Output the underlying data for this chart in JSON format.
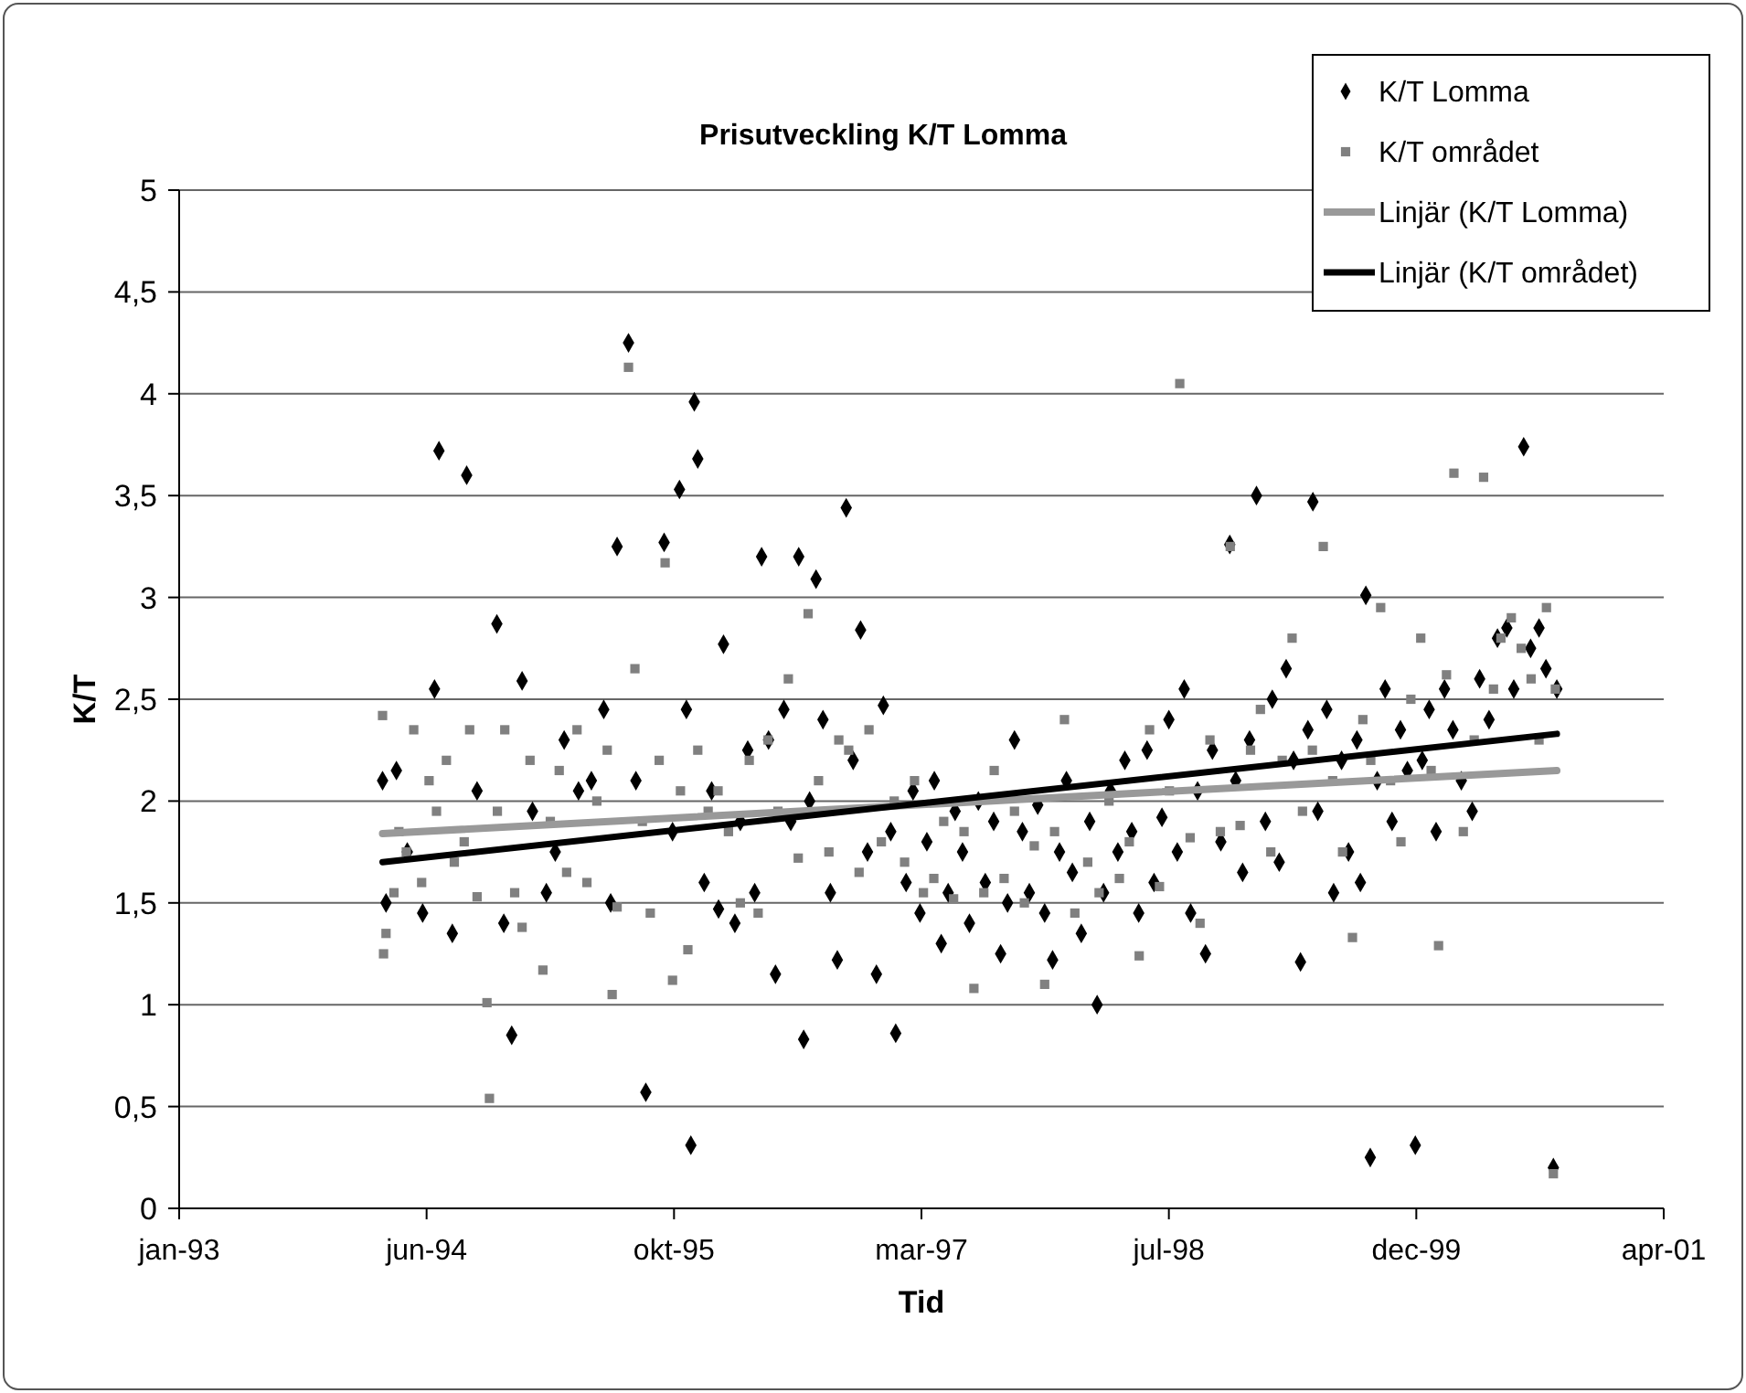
{
  "chart_data": {
    "type": "scatter",
    "title": "Prisutveckling K/T Lomma",
    "xlabel": "Tid",
    "ylabel": "K/T",
    "xlim": [
      "1993-01-31",
      "2001-04-19"
    ],
    "xticks": [
      {
        "value": "1993-01-31",
        "label": "jan-93"
      },
      {
        "value": "1994-06-15",
        "label": "jun-94"
      },
      {
        "value": "1995-10-28",
        "label": "okt-95"
      },
      {
        "value": "1997-03-11",
        "label": "mar-97"
      },
      {
        "value": "1998-07-24",
        "label": "jul-98"
      },
      {
        "value": "1999-12-06",
        "label": "dec-99"
      },
      {
        "value": "2001-04-19",
        "label": "apr-01"
      }
    ],
    "ylim": [
      0,
      5
    ],
    "yticks": [
      0,
      {
        "value": 0.5,
        "label": "0,5"
      },
      1,
      {
        "value": 1.5,
        "label": "1,5"
      },
      2,
      {
        "value": 2.5,
        "label": "2,5"
      },
      3,
      {
        "value": 3.5,
        "label": "3,5"
      },
      4,
      {
        "value": 4.5,
        "label": "4,5"
      },
      5
    ],
    "grid": "y",
    "legend": "top right",
    "series": [
      {
        "name": "K/T Lomma",
        "marker": "diamond",
        "color": "#000000",
        "x": [
          "1994-03-18",
          "1994-03-25",
          "1994-04-15",
          "1994-05-07",
          "1994-06-07",
          "1994-07-01",
          "1994-07-10",
          "1994-08-06",
          "1994-09-04",
          "1994-09-25",
          "1994-11-04",
          "1994-11-18",
          "1994-12-04",
          "1994-12-25",
          "1995-01-15",
          "1995-02-12",
          "1995-03-02",
          "1995-03-20",
          "1995-04-18",
          "1995-05-14",
          "1995-06-08",
          "1995-06-22",
          "1995-07-05",
          "1995-07-28",
          "1995-08-12",
          "1995-09-01",
          "1995-10-08",
          "1995-10-25",
          "1995-11-08",
          "1995-11-22",
          "1995-12-01",
          "1995-12-08",
          "1995-12-15",
          "1995-12-28",
          "1996-01-12",
          "1996-01-26",
          "1996-02-05",
          "1996-02-28",
          "1996-03-10",
          "1996-03-25",
          "1996-04-08",
          "1996-04-22",
          "1996-05-06",
          "1996-05-20",
          "1996-06-06",
          "1996-06-20",
          "1996-07-06",
          "1996-07-16",
          "1996-07-28",
          "1996-08-10",
          "1996-08-24",
          "1996-09-08",
          "1996-09-22",
          "1996-10-10",
          "1996-10-24",
          "1996-11-08",
          "1996-11-22",
          "1996-12-10",
          "1996-12-24",
          "1997-01-08",
          "1997-01-18",
          "1997-02-08",
          "1997-02-22",
          "1997-03-08",
          "1997-03-22",
          "1997-04-06",
          "1997-04-20",
          "1997-05-04",
          "1997-05-18",
          "1997-06-02",
          "1997-06-16",
          "1997-07-04",
          "1997-07-18",
          "1997-08-04",
          "1997-08-18",
          "1997-09-01",
          "1997-09-15",
          "1997-10-01",
          "1997-10-15",
          "1997-11-01",
          "1997-11-15",
          "1997-12-01",
          "1997-12-15",
          "1997-12-29",
          "1998-01-10",
          "1998-01-28",
          "1998-02-14",
          "1998-03-01",
          "1998-03-14",
          "1998-03-28",
          "1998-04-12",
          "1998-04-26",
          "1998-05-10",
          "1998-05-24",
          "1998-06-10",
          "1998-06-24",
          "1998-07-10",
          "1998-07-24",
          "1998-08-10",
          "1998-08-24",
          "1998-09-06",
          "1998-09-20",
          "1998-10-06",
          "1998-10-20",
          "1998-11-06",
          "1998-11-24",
          "1998-12-06",
          "1998-12-20",
          "1999-01-03",
          "1999-01-17",
          "1999-02-04",
          "1999-02-18",
          "1999-03-04",
          "1999-03-18",
          "1999-04-02",
          "1999-04-16",
          "1999-05-01",
          "1999-05-11",
          "1999-05-21",
          "1999-06-08",
          "1999-06-22",
          "1999-07-08",
          "1999-07-22",
          "1999-08-08",
          "1999-08-15",
          "1999-08-26",
          "1999-09-04",
          "1999-09-18",
          "1999-10-04",
          "1999-10-18",
          "1999-11-04",
          "1999-11-18",
          "1999-12-04",
          "1999-12-18",
          "2000-01-01",
          "2000-01-15",
          "2000-02-01",
          "2000-02-18",
          "2000-03-06",
          "2000-03-28",
          "2000-04-12",
          "2000-05-01",
          "2000-05-18",
          "2000-06-06",
          "2000-06-20",
          "2000-07-10",
          "2000-07-24",
          "2000-08-10",
          "2000-08-24",
          "2000-09-08",
          "2000-09-15"
        ],
        "values": [
          2.1,
          1.5,
          2.15,
          1.75,
          1.45,
          2.55,
          3.72,
          1.35,
          3.6,
          2.05,
          2.87,
          1.4,
          0.85,
          2.59,
          1.95,
          1.55,
          1.75,
          2.3,
          2.05,
          2.1,
          2.45,
          1.5,
          3.25,
          4.25,
          2.1,
          0.57,
          3.27,
          1.85,
          3.53,
          2.45,
          0.31,
          3.96,
          3.68,
          1.6,
          2.05,
          1.47,
          2.77,
          1.4,
          1.9,
          2.25,
          1.55,
          3.2,
          2.3,
          1.15,
          2.45,
          1.9,
          3.2,
          0.83,
          2.0,
          3.09,
          2.4,
          1.55,
          1.22,
          3.44,
          2.2,
          2.84,
          1.75,
          1.15,
          2.47,
          1.85,
          0.86,
          1.6,
          2.05,
          1.45,
          1.8,
          2.1,
          1.3,
          1.55,
          1.95,
          1.75,
          1.4,
          2.0,
          1.6,
          1.9,
          1.25,
          1.5,
          2.3,
          1.85,
          1.55,
          1.98,
          1.45,
          1.22,
          1.75,
          2.1,
          1.65,
          1.35,
          1.9,
          1.0,
          1.55,
          2.05,
          1.75,
          2.2,
          1.85,
          1.45,
          2.25,
          1.6,
          1.92,
          2.4,
          1.75,
          2.55,
          1.45,
          2.05,
          1.25,
          2.25,
          1.8,
          3.26,
          2.1,
          1.65,
          2.3,
          3.5,
          1.9,
          2.5,
          1.7,
          2.65,
          2.2,
          1.21,
          2.35,
          3.47,
          1.95,
          2.45,
          1.55,
          2.2,
          1.75,
          2.3,
          1.6,
          3.01,
          0.25,
          2.1,
          2.55,
          1.9,
          2.35,
          2.15,
          0.31,
          2.2,
          2.45,
          1.85,
          2.55,
          2.35,
          2.1,
          1.95,
          2.6,
          2.4,
          2.8,
          2.85,
          2.55,
          3.74,
          2.75,
          2.85,
          2.65,
          0.2,
          2.55
        ]
      },
      {
        "name": "K/T området",
        "marker": "square",
        "color": "#808080",
        "x": [
          "1994-03-18",
          "1994-03-20",
          "1994-03-25",
          "1994-04-10",
          "1994-04-20",
          "1994-05-05",
          "1994-05-20",
          "1994-06-05",
          "1994-06-20",
          "1994-07-05",
          "1994-07-25",
          "1994-08-10",
          "1994-08-30",
          "1994-09-10",
          "1994-09-25",
          "1994-10-15",
          "1994-10-20",
          "1994-11-05",
          "1994-11-20",
          "1994-12-10",
          "1994-12-25",
          "1995-01-10",
          "1995-02-05",
          "1995-02-20",
          "1995-03-10",
          "1995-03-25",
          "1995-04-15",
          "1995-05-05",
          "1995-05-25",
          "1995-06-15",
          "1995-06-25",
          "1995-07-05",
          "1995-07-28",
          "1995-08-10",
          "1995-08-25",
          "1995-09-10",
          "1995-09-28",
          "1995-10-10",
          "1995-10-25",
          "1995-11-10",
          "1995-11-25",
          "1995-12-15",
          "1996-01-05",
          "1996-01-25",
          "1996-02-15",
          "1996-03-10",
          "1996-03-28",
          "1996-04-15",
          "1996-05-05",
          "1996-05-25",
          "1996-06-15",
          "1996-07-05",
          "1996-07-25",
          "1996-08-15",
          "1996-09-05",
          "1996-09-25",
          "1996-10-15",
          "1996-11-05",
          "1996-11-25",
          "1996-12-20",
          "1997-01-15",
          "1997-02-05",
          "1997-02-25",
          "1997-03-15",
          "1997-04-05",
          "1997-04-25",
          "1997-05-15",
          "1997-06-05",
          "1997-06-25",
          "1997-07-15",
          "1997-08-05",
          "1997-08-25",
          "1997-09-15",
          "1997-10-05",
          "1997-10-25",
          "1997-11-15",
          "1997-12-05",
          "1997-12-25",
          "1998-01-15",
          "1998-02-10",
          "1998-03-05",
          "1998-03-25",
          "1998-04-15",
          "1998-05-05",
          "1998-05-25",
          "1998-06-15",
          "1998-07-05",
          "1998-07-25",
          "1998-08-15",
          "1998-09-05",
          "1998-09-25",
          "1998-10-15",
          "1998-11-05",
          "1998-11-25",
          "1998-12-15",
          "1999-01-05",
          "1999-01-25",
          "1999-02-15",
          "1999-03-10",
          "1999-03-30",
          "1999-04-20",
          "1999-05-10",
          "1999-06-01",
          "1999-06-20",
          "1999-07-10",
          "1999-07-30",
          "1999-08-20",
          "1999-09-05",
          "1999-09-25",
          "1999-10-15",
          "1999-11-05",
          "1999-11-25",
          "1999-12-15",
          "2000-01-05",
          "2000-01-20",
          "2000-02-05",
          "2000-02-20",
          "2000-03-10",
          "2000-04-01",
          "2000-04-20",
          "2000-05-10",
          "2000-05-25",
          "2000-06-15",
          "2000-07-05",
          "2000-07-25",
          "2000-08-10",
          "2000-08-25",
          "2000-09-08",
          "2000-09-12"
        ],
        "values": [
          2.42,
          1.25,
          1.35,
          1.55,
          1.85,
          1.75,
          2.35,
          1.6,
          2.1,
          1.95,
          2.2,
          1.7,
          1.8,
          2.35,
          1.53,
          1.01,
          0.54,
          1.95,
          2.35,
          1.55,
          1.38,
          2.2,
          1.17,
          1.9,
          2.15,
          1.65,
          2.35,
          1.6,
          2.0,
          2.25,
          1.05,
          1.48,
          4.13,
          2.65,
          1.9,
          1.45,
          2.2,
          3.17,
          1.12,
          2.05,
          1.27,
          2.25,
          1.95,
          2.05,
          1.85,
          1.5,
          2.2,
          1.45,
          2.3,
          1.95,
          2.6,
          1.72,
          2.92,
          2.1,
          1.75,
          2.3,
          2.25,
          1.65,
          2.35,
          1.8,
          2.0,
          1.7,
          2.1,
          1.55,
          1.62,
          1.9,
          1.52,
          1.85,
          1.08,
          1.55,
          2.15,
          1.62,
          1.95,
          1.5,
          1.78,
          1.1,
          1.85,
          2.4,
          1.45,
          1.7,
          1.55,
          2.0,
          1.62,
          1.8,
          1.24,
          2.35,
          1.58,
          2.05,
          4.05,
          1.82,
          1.4,
          2.3,
          1.85,
          3.25,
          1.88,
          2.25,
          2.45,
          1.75,
          2.2,
          2.8,
          1.95,
          2.25,
          3.25,
          2.1,
          1.75,
          1.33,
          2.4,
          2.2,
          2.95,
          2.1,
          1.8,
          2.5,
          2.8,
          2.15,
          1.29,
          2.62,
          3.61,
          1.85,
          2.3,
          3.59,
          2.55,
          2.8,
          2.9,
          2.75,
          2.6,
          2.3,
          2.95,
          0.17,
          2.55
        ]
      },
      {
        "name": "Linjär (K/T Lomma)",
        "type": "line",
        "color": "#999999",
        "x": [
          "1994-03-18",
          "2000-09-15"
        ],
        "values": [
          1.84,
          2.15
        ]
      },
      {
        "name": "Linjär (K/T området)",
        "type": "line",
        "color": "#000000",
        "x": [
          "1994-03-18",
          "2000-09-15"
        ],
        "values": [
          1.7,
          2.33
        ]
      }
    ]
  }
}
